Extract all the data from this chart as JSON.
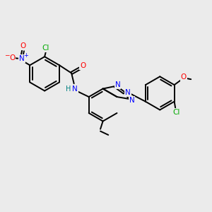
{
  "bg_color": "#ebebeb",
  "bond_color": "#000000",
  "bond_width": 1.4,
  "atom_colors": {
    "N": "#0000ff",
    "O": "#ff0000",
    "Cl": "#00aa00",
    "H": "#008080",
    "C": "#000000"
  },
  "figsize": [
    3.0,
    3.0
  ],
  "dpi": 100
}
